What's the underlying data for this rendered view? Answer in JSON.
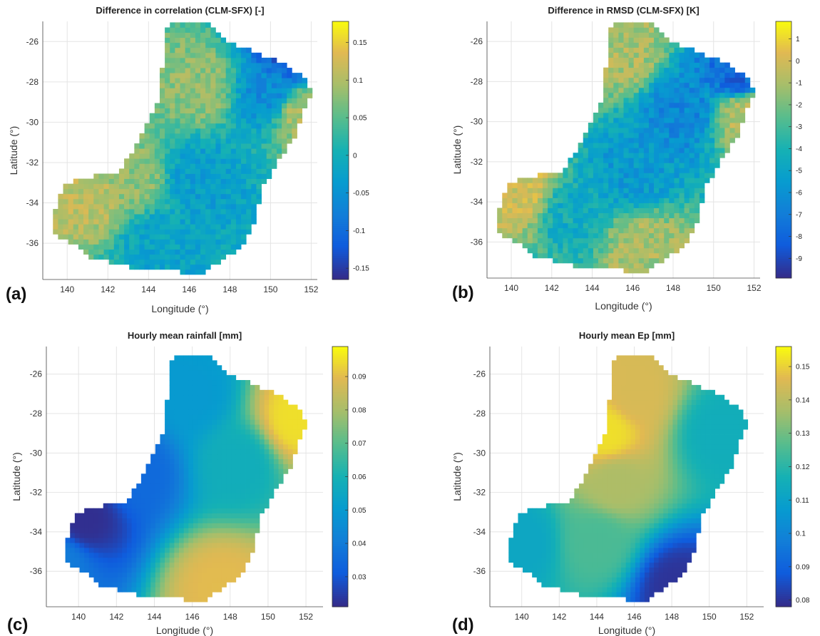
{
  "chart_data": [
    {
      "panel_label": "(a)",
      "type": "heatmap",
      "title": "Difference in correlation (CLM-SFX)  [-]",
      "xlabel": "Longitude (°)",
      "ylabel": "Latitude (°)",
      "xlim": [
        138.8,
        152.3
      ],
      "ylim": [
        -37.8,
        -25
      ],
      "xticks": [
        140,
        142,
        144,
        146,
        148,
        150,
        152
      ],
      "yticks": [
        -36,
        -34,
        -32,
        -30,
        -28,
        -26
      ],
      "colorbar": {
        "min": -0.165,
        "max": 0.178,
        "ticks": [
          -0.15,
          -0.1,
          -0.05,
          0,
          0.05,
          0.1,
          0.15
        ],
        "ticklabels": [
          "-0.15",
          "-0.1",
          "-0.05",
          "0",
          "0.05",
          "0.1",
          "0.15"
        ]
      },
      "colormap": "parula",
      "field_regions": [
        {
          "lon": 141.0,
          "lat": -33.6,
          "value": 0.11
        },
        {
          "lon": 146.5,
          "lat": -28.2,
          "value": 0.08
        },
        {
          "lon": 143.2,
          "lat": -32.8,
          "value": 0.08
        },
        {
          "lon": 151.0,
          "lat": -26.8,
          "value": -0.12
        },
        {
          "lon": 150.0,
          "lat": -28.6,
          "value": -0.06
        },
        {
          "lon": 146.5,
          "lat": -32.8,
          "value": -0.03
        },
        {
          "lon": 144.5,
          "lat": -36.0,
          "value": -0.02
        },
        {
          "lon": 151.5,
          "lat": -29.5,
          "value": 0.1
        }
      ]
    },
    {
      "panel_label": "(b)",
      "type": "heatmap",
      "title": "Difference in RMSD (CLM-SFX)  [K]",
      "xlabel": "Longitude (°)",
      "ylabel": "Latitude (°)",
      "xlim": [
        138.8,
        152.3
      ],
      "ylim": [
        -37.8,
        -25
      ],
      "xticks": [
        140,
        142,
        144,
        146,
        148,
        150,
        152
      ],
      "yticks": [
        -36,
        -34,
        -32,
        -30,
        -28,
        -26
      ],
      "colorbar": {
        "min": -9.9,
        "max": 1.8,
        "ticks": [
          -9,
          -8,
          -7,
          -6,
          -5,
          -4,
          -3,
          -2,
          -1,
          0,
          1
        ],
        "ticklabels": [
          "-9",
          "-8",
          "-7",
          "-6",
          "-5",
          "-4",
          "-3",
          "-2",
          "-1",
          "0",
          "1"
        ]
      },
      "colormap": "parula",
      "field_regions": [
        {
          "lon": 145.5,
          "lat": -26.5,
          "value": -1.0
        },
        {
          "lon": 140.5,
          "lat": -33.5,
          "value": 0.0
        },
        {
          "lon": 146.5,
          "lat": -36.3,
          "value": -1.0
        },
        {
          "lon": 151.5,
          "lat": -29.5,
          "value": -0.5
        },
        {
          "lon": 151.2,
          "lat": -27.8,
          "value": -8.0
        },
        {
          "lon": 148.5,
          "lat": -29.5,
          "value": -6.5
        },
        {
          "lon": 143.0,
          "lat": -34.5,
          "value": -4.5
        },
        {
          "lon": 146.0,
          "lat": -32.5,
          "value": -5.5
        }
      ]
    },
    {
      "panel_label": "(c)",
      "type": "heatmap",
      "title": "Hourly mean rainfall [mm]",
      "xlabel": "Longitude (°)",
      "ylabel": "Latitude (°)",
      "xlim": [
        138.3,
        152.9
      ],
      "ylim": [
        -37.8,
        -24.6
      ],
      "xticks": [
        140,
        142,
        144,
        146,
        148,
        150,
        152
      ],
      "yticks": [
        -36,
        -34,
        -32,
        -30,
        -28,
        -26
      ],
      "colorbar": {
        "min": 0.021,
        "max": 0.099,
        "ticks": [
          0.03,
          0.04,
          0.05,
          0.06,
          0.07,
          0.08,
          0.09
        ],
        "ticklabels": [
          "0.03",
          "0.04",
          "0.05",
          "0.06",
          "0.07",
          "0.08",
          "0.09"
        ]
      },
      "colormap": "parula",
      "field_regions": [
        {
          "lon": 140.3,
          "lat": -33.4,
          "value": 0.022
        },
        {
          "lon": 143.0,
          "lat": -31.0,
          "value": 0.035
        },
        {
          "lon": 146.0,
          "lat": -27.0,
          "value": 0.05
        },
        {
          "lon": 148.5,
          "lat": -30.5,
          "value": 0.058
        },
        {
          "lon": 151.5,
          "lat": -28.3,
          "value": 0.095
        },
        {
          "lon": 147.5,
          "lat": -36.8,
          "value": 0.09
        },
        {
          "lon": 139.0,
          "lat": -35.5,
          "value": 0.04
        }
      ]
    },
    {
      "panel_label": "(d)",
      "type": "heatmap",
      "title": "Hourly mean Ep [mm]",
      "xlabel": "Longitude (°)",
      "ylabel": "Latitude (°)",
      "xlim": [
        138.3,
        152.9
      ],
      "ylim": [
        -37.8,
        -24.6
      ],
      "xticks": [
        140,
        142,
        144,
        146,
        148,
        150,
        152
      ],
      "yticks": [
        -36,
        -34,
        -32,
        -30,
        -28,
        -26
      ],
      "colorbar": {
        "min": 0.078,
        "max": 0.156,
        "ticks": [
          0.08,
          0.09,
          0.1,
          0.11,
          0.12,
          0.13,
          0.14,
          0.15
        ],
        "ticklabels": [
          "0.08",
          "0.09",
          "0.1",
          "0.11",
          "0.12",
          "0.13",
          "0.14",
          "0.15"
        ]
      },
      "colormap": "parula",
      "field_regions": [
        {
          "lon": 146.0,
          "lat": -27.0,
          "value": 0.145
        },
        {
          "lon": 144.5,
          "lat": -29.0,
          "value": 0.152
        },
        {
          "lon": 145.0,
          "lat": -31.5,
          "value": 0.138
        },
        {
          "lon": 150.5,
          "lat": -29.0,
          "value": 0.115
        },
        {
          "lon": 148.3,
          "lat": -36.8,
          "value": 0.08
        },
        {
          "lon": 140.0,
          "lat": -34.5,
          "value": 0.112
        },
        {
          "lon": 144.0,
          "lat": -34.5,
          "value": 0.125
        }
      ]
    }
  ]
}
